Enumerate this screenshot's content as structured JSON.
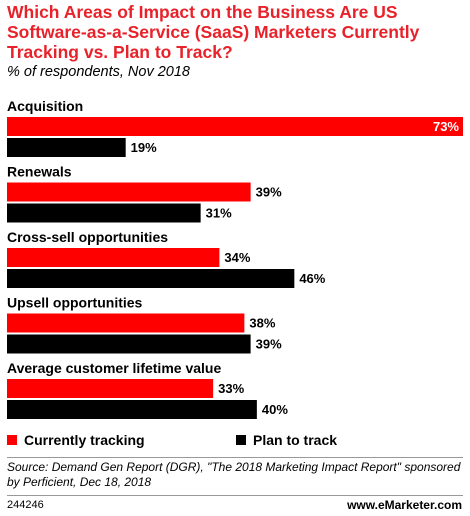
{
  "header": {
    "title": "Which Areas of Impact on the Business Are US Software-as-a-Service (SaaS) Marketers Currently Tracking vs. Plan to Track?",
    "subtitle": "% of respondents, Nov 2018"
  },
  "chart_data": {
    "type": "bar",
    "orientation": "horizontal",
    "categories": [
      "Acquisition",
      "Renewals",
      "Cross-sell opportunities",
      "Upsell opportunities",
      "Average customer lifetime value"
    ],
    "series": [
      {
        "name": "Currently tracking",
        "color": "#ff0000",
        "values": [
          73,
          39,
          34,
          38,
          33
        ]
      },
      {
        "name": "Plan to track",
        "color": "#000000",
        "values": [
          19,
          31,
          46,
          39,
          40
        ]
      }
    ],
    "value_suffix": "%",
    "xlim": [
      0,
      73
    ],
    "grid": false,
    "legend_position": "bottom-left"
  },
  "legend": {
    "items": [
      {
        "label": "Currently tracking",
        "color": "#ff0000"
      },
      {
        "label": "Plan to track",
        "color": "#000000"
      }
    ]
  },
  "footer": {
    "source": "Source: Demand Gen Report (DGR), \"The 2018 Marketing Impact Report\" sponsored by Perficient, Dec 18, 2018",
    "chart_id": "244246",
    "brand": "www.eMarketer.com"
  }
}
